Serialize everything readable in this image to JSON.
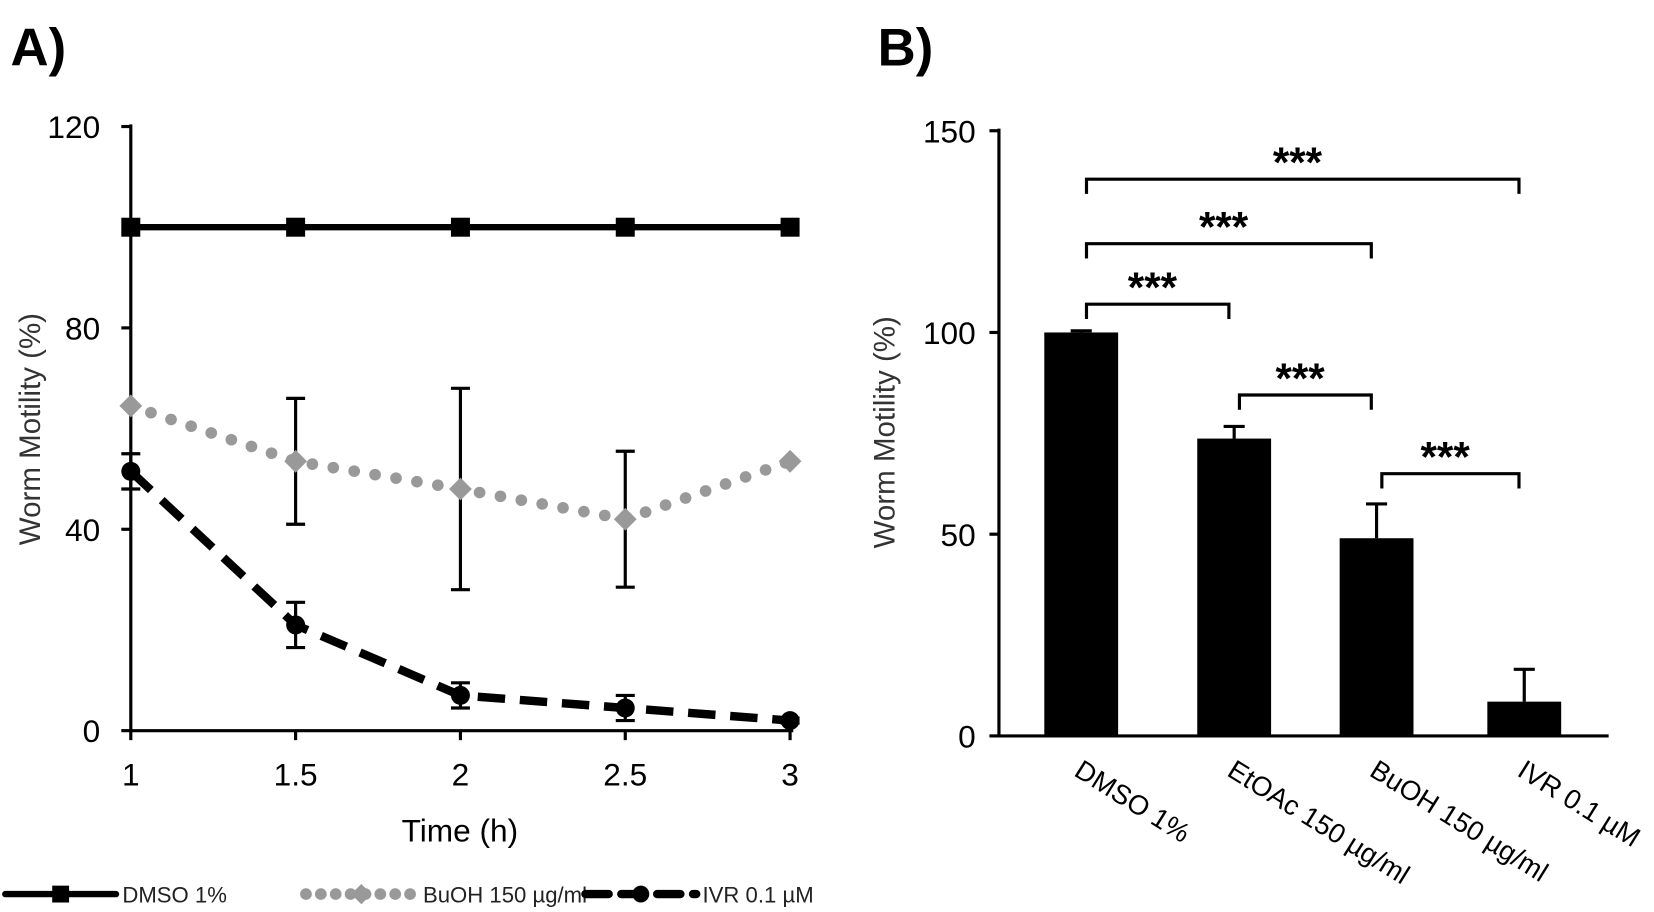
{
  "chart_data": [
    {
      "panel": "A)",
      "type": "line",
      "xlabel": "Time (h)",
      "ylabel": "Worm Motility (%)",
      "xlim": [
        1,
        3
      ],
      "ylim": [
        0,
        120
      ],
      "x_ticks": [
        "1",
        "1.5",
        "2",
        "2.5",
        "3"
      ],
      "y_ticks": [
        "0",
        "40",
        "80",
        "120"
      ],
      "x": [
        1,
        1.5,
        2,
        2.5,
        3
      ],
      "legend_position": "bottom",
      "series": [
        {
          "name": "DMSO 1%",
          "values": [
            100,
            100,
            100,
            100,
            100
          ],
          "errors": [
            0,
            0,
            0,
            0,
            0
          ],
          "color": "#000000",
          "style": "solid",
          "marker": "square"
        },
        {
          "name": "BuOH 150 µg/ml",
          "values": [
            64.5,
            53.5,
            48,
            42,
            53.5
          ],
          "errors": [
            0,
            12.5,
            20,
            13.5,
            0
          ],
          "color": "#999999",
          "style": "dotted",
          "marker": "diamond"
        },
        {
          "name": "IVR 0.1 µM",
          "values": [
            51.5,
            21,
            7,
            4.5,
            2
          ],
          "errors": [
            3.5,
            4.5,
            2.5,
            2.5,
            0.5
          ],
          "color": "#000000",
          "style": "dashed",
          "marker": "circle"
        }
      ]
    },
    {
      "panel": "B)",
      "type": "bar",
      "ylabel": "Worm Motility (%)",
      "ylim": [
        0,
        150
      ],
      "y_ticks": [
        "0",
        "50",
        "100",
        "150"
      ],
      "categories": [
        "DMSO 1%",
        "EtOAc 150 µg/ml",
        "BuOH 150 µg/ml",
        "IVR 0.1 µM"
      ],
      "values": [
        100,
        73.7,
        49,
        8.5
      ],
      "errors": [
        0.4,
        3,
        8.5,
        8
      ],
      "color": "#000000",
      "significance": [
        {
          "from": 0,
          "to": 3,
          "level": 138,
          "label": "***"
        },
        {
          "from": 0,
          "to": 2,
          "level": 122,
          "label": "***"
        },
        {
          "from": 0,
          "to": 1,
          "level": 107,
          "label": "***"
        },
        {
          "from": 1,
          "to": 2,
          "level": 84.5,
          "label": "***"
        },
        {
          "from": 2,
          "to": 3,
          "level": 65,
          "label": "***"
        }
      ]
    }
  ]
}
